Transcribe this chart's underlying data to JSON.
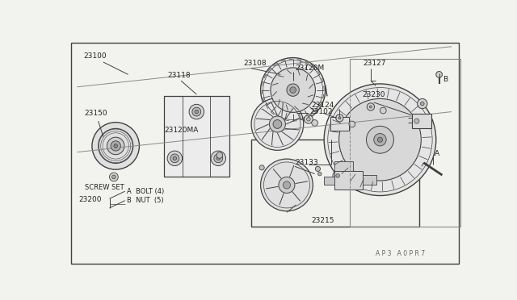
{
  "bg_color": "#f2f2ee",
  "line_color": "#404040",
  "text_color": "#222222",
  "fig_width": 6.4,
  "fig_height": 3.72,
  "border": [
    0.012,
    0.015,
    0.987,
    0.972
  ]
}
